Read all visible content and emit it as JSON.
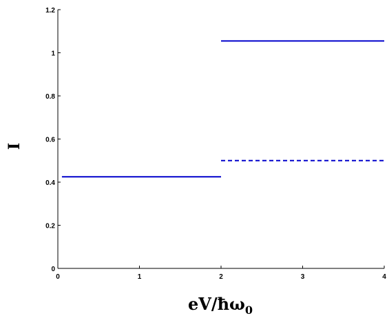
{
  "chart_data": {
    "type": "line",
    "title": "",
    "xlabel": "eV/ħω",
    "xlabel_subscript": "0",
    "ylabel": "I",
    "xlim": [
      0,
      4
    ],
    "ylim": [
      0,
      1.2
    ],
    "xticks": [
      0,
      1,
      2,
      3,
      4
    ],
    "yticks": [
      0,
      0.2,
      0.4,
      0.6,
      0.8,
      1,
      1.2
    ],
    "grid": false,
    "legend": "none",
    "color": "#0000cc",
    "series": [
      {
        "style": "solid",
        "points": [
          [
            0.05,
            0.425
          ],
          [
            2.0,
            0.425
          ]
        ]
      },
      {
        "style": "solid",
        "points": [
          [
            2.0,
            1.055
          ],
          [
            4.0,
            1.055
          ]
        ]
      },
      {
        "style": "dashed",
        "points": [
          [
            2.0,
            0.5
          ],
          [
            4.0,
            0.5
          ]
        ]
      }
    ]
  }
}
